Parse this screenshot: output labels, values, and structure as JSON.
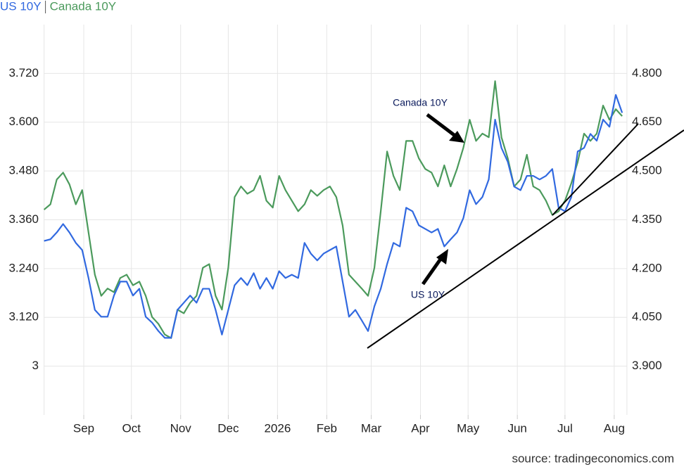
{
  "chart_data": {
    "type": "line",
    "x": [
      0,
      4,
      8,
      12,
      16,
      20,
      24,
      28,
      32,
      36,
      40,
      44,
      48,
      52,
      56,
      60,
      64,
      68,
      72,
      76,
      80,
      84,
      88,
      92,
      96,
      100,
      104,
      108,
      112,
      116,
      120,
      124,
      128,
      132,
      136,
      140,
      144,
      148,
      152,
      156,
      160,
      164,
      168,
      172,
      176,
      180,
      184,
      188,
      192,
      196,
      200,
      204,
      208,
      212,
      216,
      220,
      224,
      228,
      232,
      236,
      240,
      244,
      248,
      252,
      256,
      260,
      264,
      268,
      272,
      276,
      280,
      284,
      288,
      292,
      296,
      300,
      304,
      308,
      312,
      316,
      320,
      324,
      328,
      332,
      336,
      340,
      344,
      348,
      352,
      356,
      360,
      364
    ],
    "xlim": [
      0,
      367
    ],
    "xticks": [
      {
        "value": 25,
        "label": "Sep"
      },
      {
        "value": 55,
        "label": "Oct"
      },
      {
        "value": 86,
        "label": "Nov"
      },
      {
        "value": 116,
        "label": "Dec"
      },
      {
        "value": 147,
        "label": "2026"
      },
      {
        "value": 178,
        "label": "Feb"
      },
      {
        "value": 206,
        "label": "Mar"
      },
      {
        "value": 237,
        "label": "Apr"
      },
      {
        "value": 267,
        "label": "May"
      },
      {
        "value": 298,
        "label": "Jun"
      },
      {
        "value": 328,
        "label": "Jul"
      },
      {
        "value": 359,
        "label": "Aug"
      }
    ],
    "ylim": [
      2.88,
      3.84
    ],
    "yticks": [
      3,
      {
        "value": 3.12,
        "label": "3.120"
      },
      {
        "value": 3.24,
        "label": "3.240"
      },
      {
        "value": 3.36,
        "label": "3.360"
      },
      {
        "value": 3.48,
        "label": "3.480"
      },
      {
        "value": 3.6,
        "label": "3.600"
      },
      {
        "value": 3.72,
        "label": "3.720"
      }
    ],
    "y2lim": [
      3.75,
      4.95
    ],
    "y2ticks": [
      {
        "value": 3.9,
        "label": "3.900"
      },
      {
        "value": 4.05,
        "label": "4.050"
      },
      {
        "value": 4.2,
        "label": "4.200"
      },
      {
        "value": 4.35,
        "label": "4.350"
      },
      {
        "value": 4.5,
        "label": "4.500"
      },
      {
        "value": 4.65,
        "label": "4.650"
      },
      {
        "value": 4.8,
        "label": "4.800"
      }
    ],
    "grid": true,
    "series": [
      {
        "name": "US 10Y",
        "color": "#3169e0",
        "axis": "y2",
        "values": [
          4.285,
          4.29,
          4.311,
          4.337,
          4.311,
          4.279,
          4.257,
          4.171,
          4.073,
          4.052,
          4.052,
          4.117,
          4.16,
          4.16,
          4.117,
          4.138,
          4.052,
          4.034,
          4.008,
          3.987,
          3.987,
          4.073,
          4.095,
          4.117,
          4.095,
          4.138,
          4.138,
          4.073,
          3.997,
          4.073,
          4.149,
          4.171,
          4.149,
          4.186,
          4.138,
          4.171,
          4.138,
          4.192,
          4.171,
          4.181,
          4.171,
          4.279,
          4.246,
          4.225,
          4.246,
          4.257,
          4.268,
          4.16,
          4.052,
          4.073,
          4.041,
          4.008,
          4.084,
          4.138,
          4.214,
          4.279,
          4.268,
          4.387,
          4.376,
          4.333,
          4.322,
          4.311,
          4.322,
          4.268,
          4.29,
          4.311,
          4.355,
          4.441,
          4.398,
          4.42,
          4.474,
          4.658,
          4.571,
          4.528,
          4.452,
          4.441,
          4.485,
          4.485,
          4.474,
          4.485,
          4.506,
          4.387,
          4.376,
          4.42,
          4.56,
          4.571,
          4.614,
          4.593,
          4.658,
          4.636,
          4.734,
          4.679
        ]
      },
      {
        "name": "Canada 10Y",
        "color": "#4b9a5c",
        "values": [
          3.385,
          3.398,
          3.459,
          3.476,
          3.447,
          3.398,
          3.433,
          3.329,
          3.225,
          3.173,
          3.191,
          3.182,
          3.217,
          3.225,
          3.199,
          3.208,
          3.173,
          3.121,
          3.104,
          3.078,
          3.069,
          3.139,
          3.13,
          3.156,
          3.173,
          3.242,
          3.251,
          3.173,
          3.139,
          3.242,
          3.416,
          3.442,
          3.424,
          3.433,
          3.468,
          3.407,
          3.39,
          3.468,
          3.433,
          3.407,
          3.381,
          3.398,
          3.433,
          3.419,
          3.433,
          3.442,
          3.416,
          3.346,
          3.225,
          3.208,
          3.191,
          3.173,
          3.242,
          3.381,
          3.528,
          3.468,
          3.433,
          3.554,
          3.554,
          3.511,
          3.485,
          3.476,
          3.442,
          3.494,
          3.442,
          3.485,
          3.537,
          3.606,
          3.554,
          3.572,
          3.563,
          3.701,
          3.563,
          3.511,
          3.442,
          3.459,
          3.52,
          3.442,
          3.433,
          3.407,
          3.372,
          3.381,
          3.407,
          3.45,
          3.502,
          3.572,
          3.554,
          3.572,
          3.641,
          3.606,
          3.632,
          3.615
        ]
      }
    ],
    "annotations": [
      "Canada 10Y",
      "US 10Y"
    ],
    "source": "source: tradingeconomics.com"
  }
}
